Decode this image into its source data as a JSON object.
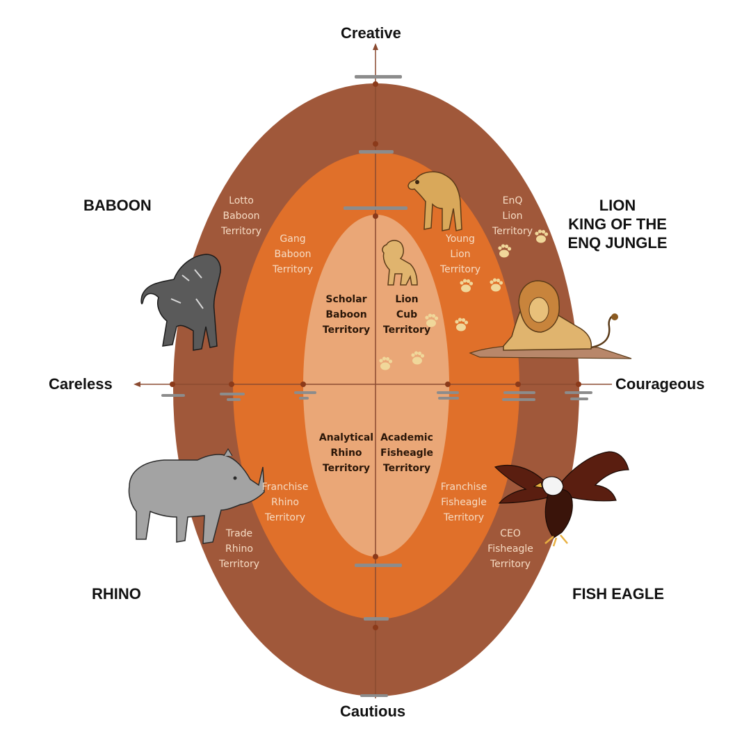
{
  "axes": {
    "top": "Creative",
    "bottom": "Cautious",
    "left": "Careless",
    "right": "Courageous"
  },
  "animals": {
    "baboon": "BABOON",
    "lion": [
      "LION",
      "KING OF THE",
      "ENQ JUNGLE"
    ],
    "rhino": "RHINO",
    "fish_eagle": "FISH EAGLE"
  },
  "territories": {
    "lotto_baboon": [
      "Lotto",
      "Baboon",
      "Territory"
    ],
    "gang_baboon": [
      "Gang",
      "Baboon",
      "Territory"
    ],
    "scholar_baboon": [
      "Scholar",
      "Baboon",
      "Territory"
    ],
    "enq_lion": [
      "EnQ",
      "Lion",
      "Territory"
    ],
    "young_lion": [
      "Young",
      "Lion",
      "Territory"
    ],
    "lion_cub": [
      "Lion",
      "Cub",
      "Territory"
    ],
    "analytical_rhino": [
      "Analytical",
      "Rhino",
      "Territory"
    ],
    "franchise_rhino": [
      "Franchise",
      "Rhino",
      "Territory"
    ],
    "trade_rhino": [
      "Trade",
      "Rhino",
      "Territory"
    ],
    "academic_fisheagle": [
      "Academic",
      "Fisheagle",
      "Territory"
    ],
    "franchise_fisheagle": [
      "Franchise",
      "Fisheagle",
      "Territory"
    ],
    "ceo_fisheagle": [
      "CEO",
      "Fisheagle",
      "Territory"
    ]
  },
  "colors": {
    "outer_ring": "#a0583a",
    "middle_ring": "#e0702a",
    "inner_core": "#eaa777",
    "axis": "#8a4a30",
    "marker": "#8c8c8c",
    "paw": "#f0d79a"
  },
  "icons": [
    "lion-icon",
    "lion-cub-icon",
    "baboon-icon",
    "rhino-icon",
    "fish-eagle-icon",
    "paw-print-icon"
  ]
}
